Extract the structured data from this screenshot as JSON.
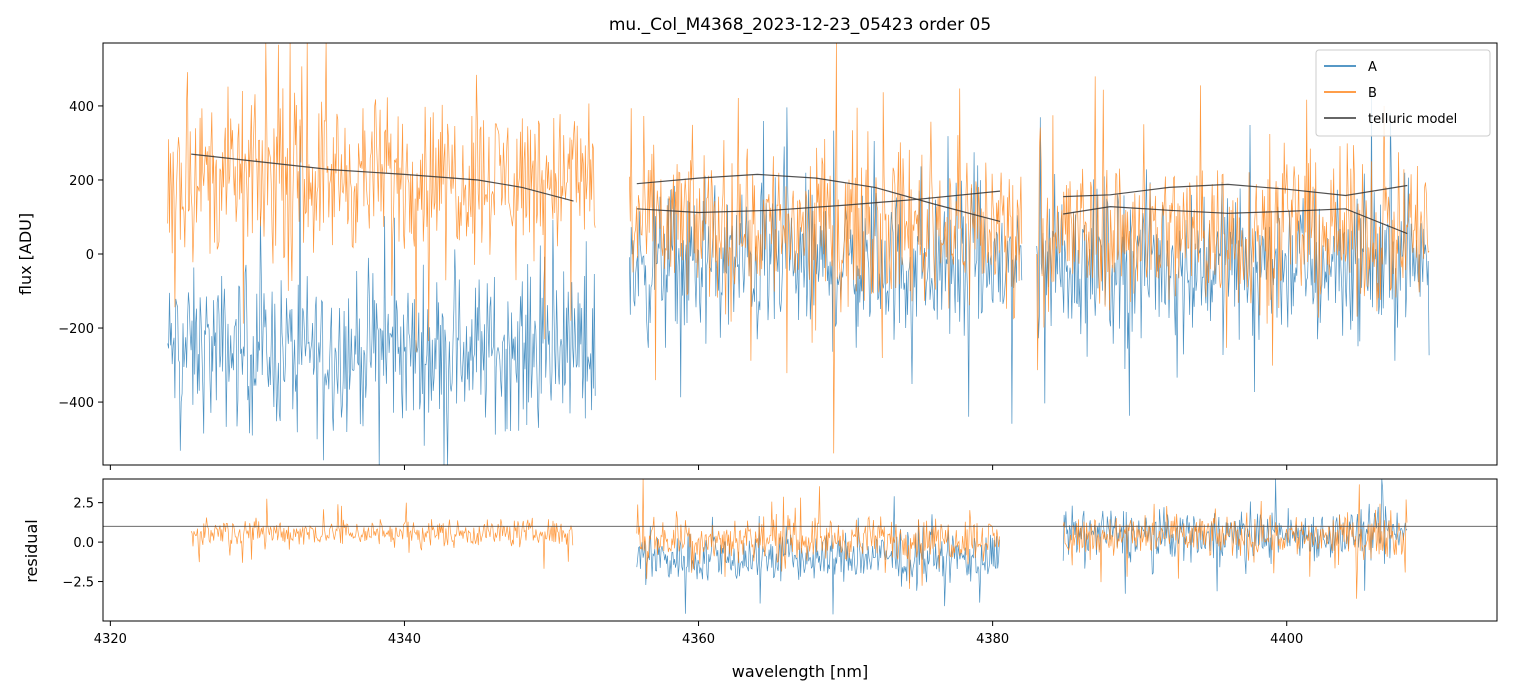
{
  "chart_data": [
    {
      "type": "line",
      "title": "mu._Col_M4368_2023-12-23_05423  order 05",
      "xlabel": "",
      "ylabel": "flux [ADU]",
      "xlim": [
        4319.5,
        4414.3
      ],
      "ylim": [
        -570,
        570
      ],
      "yticks": [
        -400,
        -200,
        0,
        200,
        400
      ],
      "ytick_labels": [
        "−400",
        "−200",
        "0",
        "200",
        "400"
      ],
      "grid": false,
      "legend": {
        "placement": "top-right",
        "entries": [
          "A",
          "B",
          "telluric model"
        ]
      },
      "colors": {
        "A": "#1f77b4",
        "B": "#ff7f0e",
        "telluric model": "#333333"
      },
      "segments": [
        {
          "x_range": [
            4323.9,
            4353.0
          ],
          "A_level": -260,
          "A_spread": 300,
          "B_level": 210,
          "B_spread": 300
        },
        {
          "x_range": [
            4355.3,
            4382.0
          ],
          "A_level": -30,
          "A_spread": 310,
          "B_level": 80,
          "B_spread": 310
        },
        {
          "x_range": [
            4383.0,
            4409.7
          ],
          "A_level": -20,
          "A_spread": 300,
          "B_level": 60,
          "B_spread": 300
        }
      ],
      "telluric_model": [
        {
          "x": [
            4325.5,
            4330,
            4335,
            4340,
            4345,
            4348,
            4351.5
          ],
          "y": [
            270,
            250,
            228,
            215,
            200,
            180,
            143
          ]
        },
        {
          "x": [
            4355.8,
            4360,
            4364,
            4368,
            4372,
            4376,
            4380.5
          ],
          "y": [
            190,
            205,
            215,
            205,
            180,
            135,
            88
          ]
        },
        {
          "x": [
            4355.8,
            4360,
            4365,
            4370,
            4375,
            4380.5
          ],
          "y": [
            122,
            112,
            118,
            132,
            148,
            170
          ]
        },
        {
          "x": [
            4384.8,
            4388,
            4392,
            4396,
            4400,
            4404,
            4408.2
          ],
          "y": [
            155,
            160,
            180,
            188,
            175,
            158,
            185
          ]
        },
        {
          "x": [
            4384.8,
            4388,
            4392,
            4396,
            4400,
            4404,
            4408.2
          ],
          "y": [
            108,
            128,
            118,
            110,
            115,
            122,
            55
          ]
        }
      ]
    },
    {
      "type": "line",
      "title": "",
      "xlabel": "wavelength [nm]",
      "ylabel": "residual",
      "xlim": [
        4319.5,
        4414.3
      ],
      "ylim": [
        -5.0,
        4.0
      ],
      "xticks": [
        4320,
        4340,
        4360,
        4380,
        4400
      ],
      "xtick_labels": [
        "4320",
        "4340",
        "4360",
        "4380",
        "4400"
      ],
      "yticks": [
        -2.5,
        0.0,
        2.5
      ],
      "ytick_labels": [
        "−2.5",
        "0.0",
        "2.5"
      ],
      "grid": false,
      "reference_line": 1.0,
      "segments": [
        {
          "x_range": [
            4325.5,
            4351.5
          ],
          "A_level": null,
          "A_spread": 0,
          "B_level": 0.6,
          "B_spread": 1.3
        },
        {
          "x_range": [
            4355.8,
            4380.5
          ],
          "A_level": -1.0,
          "A_spread": 2.4,
          "B_level": 0.2,
          "B_spread": 2.0
        },
        {
          "x_range": [
            4384.8,
            4408.2
          ],
          "A_level": 0.5,
          "A_spread": 2.4,
          "B_level": 0.4,
          "B_spread": 2.0
        }
      ]
    }
  ]
}
